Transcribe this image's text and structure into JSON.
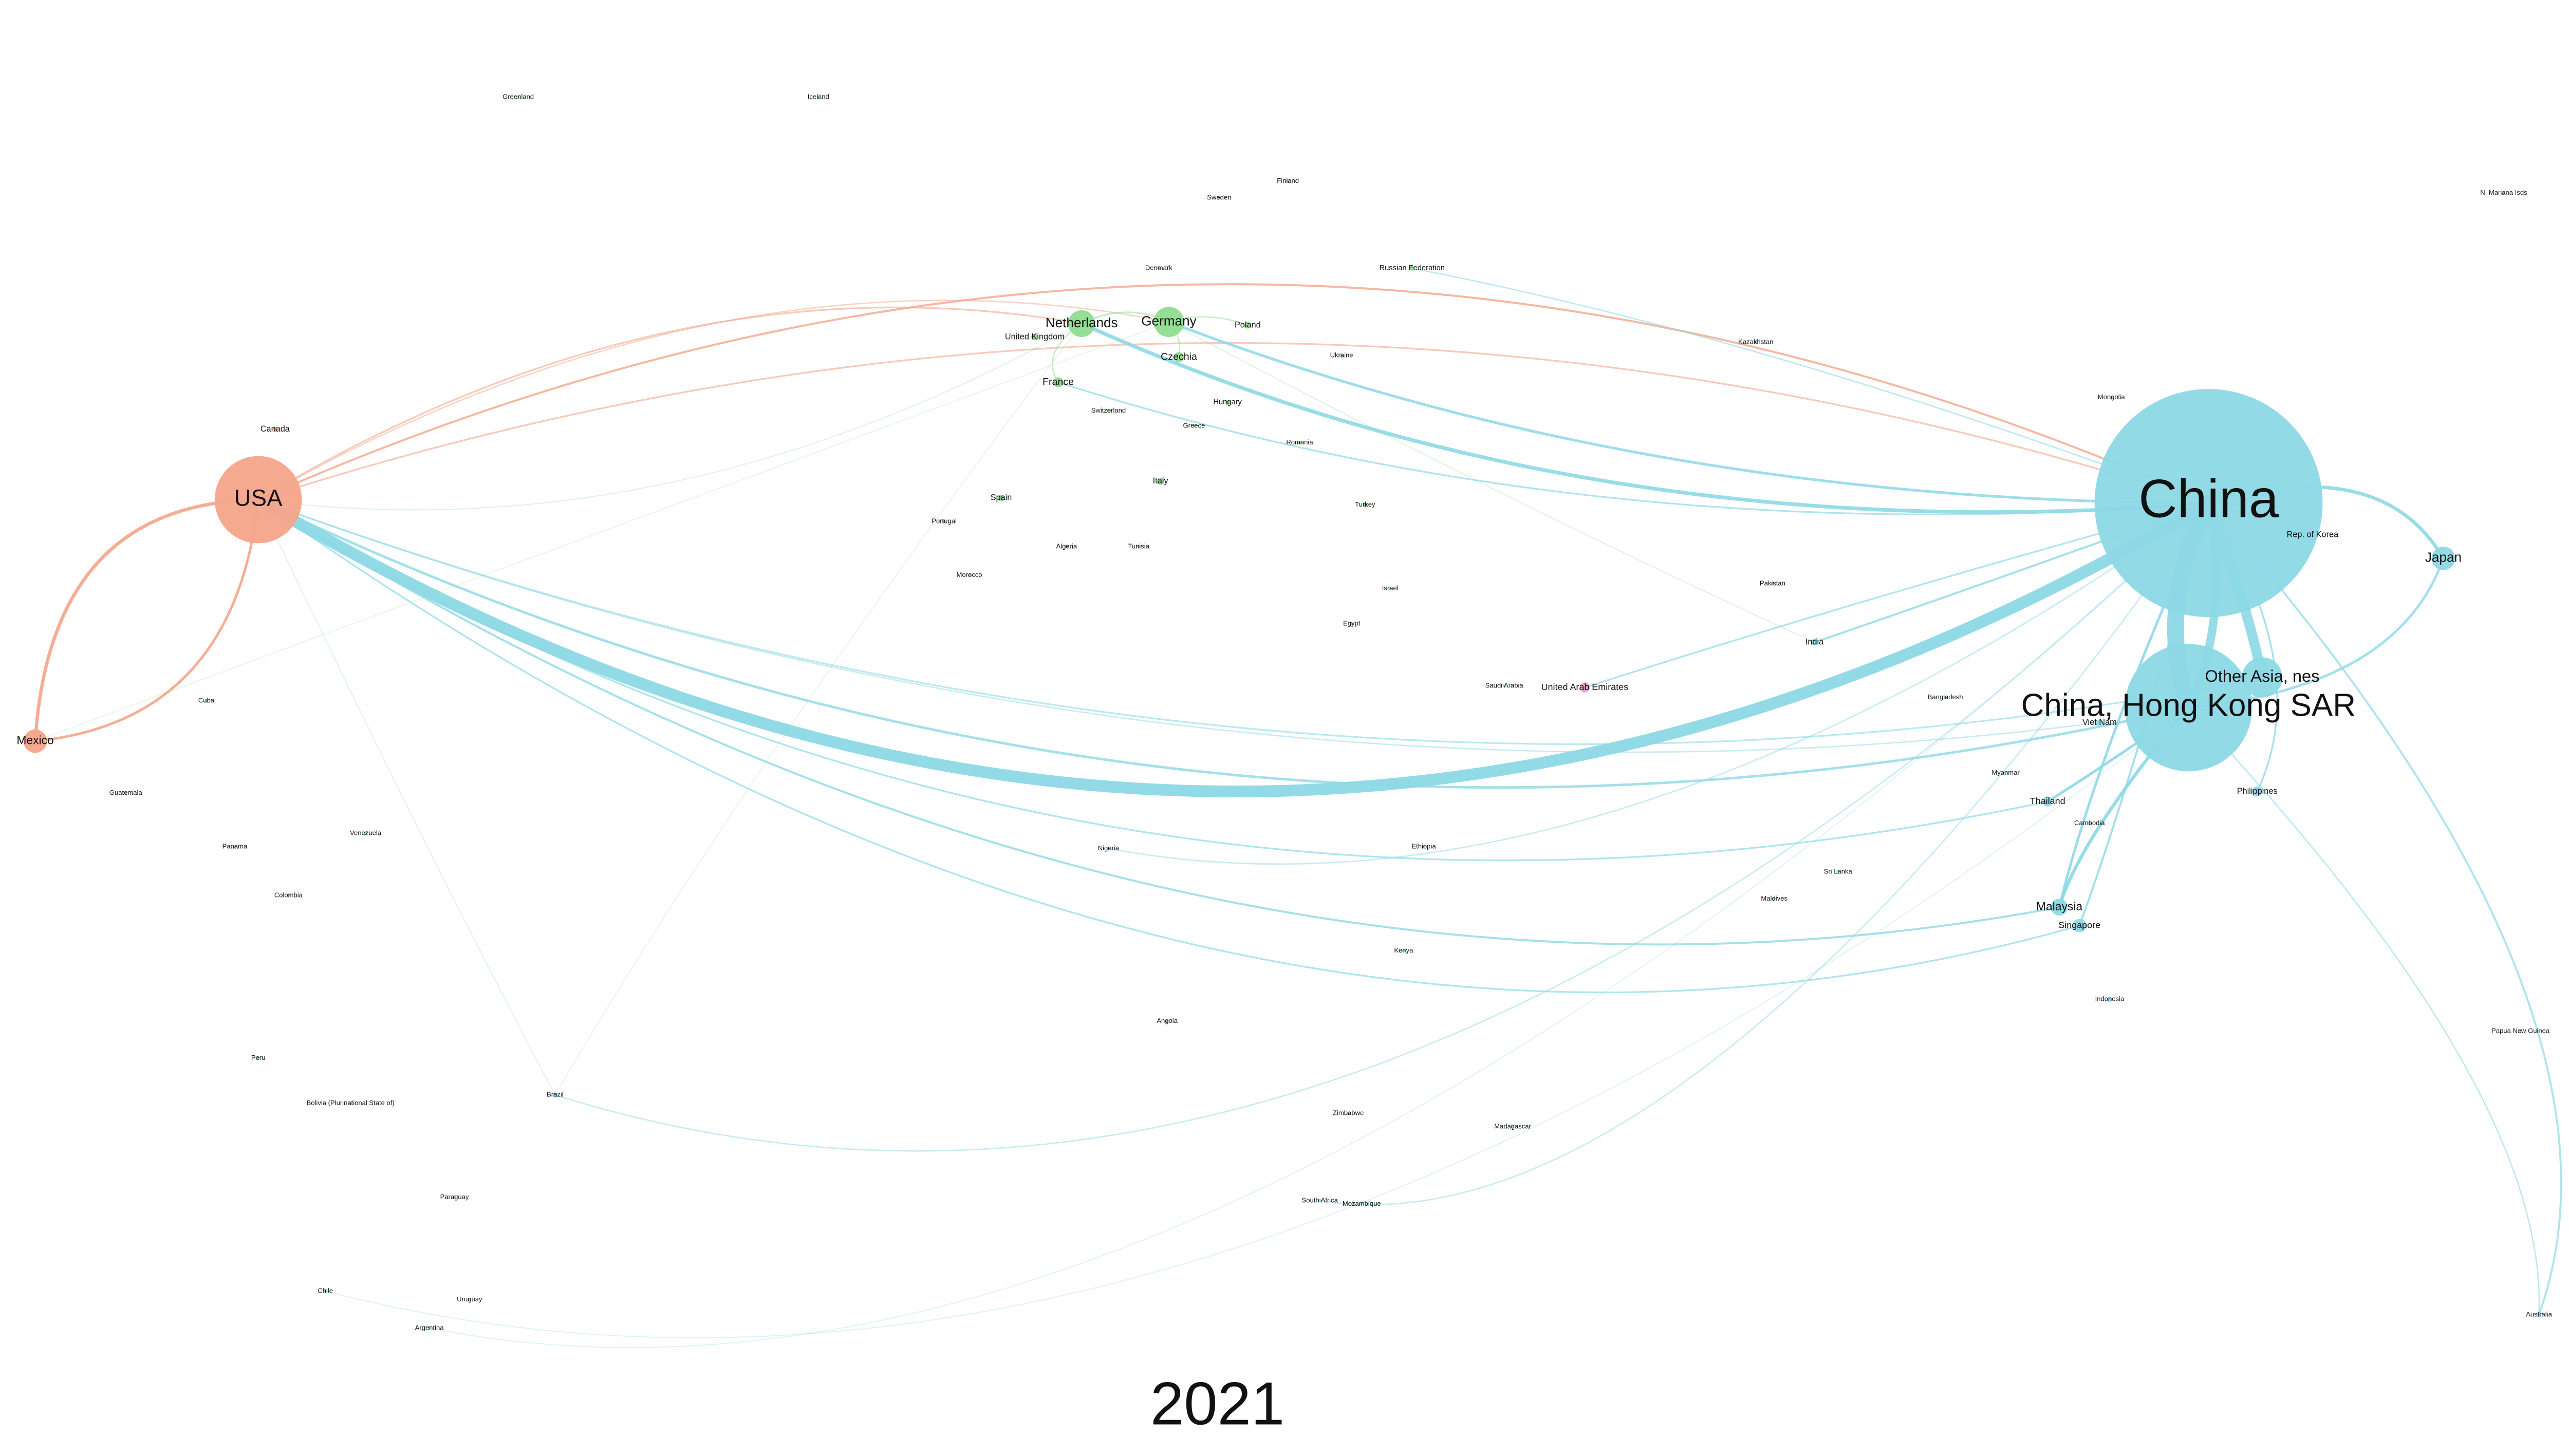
{
  "title": "2021",
  "nodes": [
    {
      "label": "USA"
    },
    {
      "label": "China"
    },
    {
      "label": "China, Hong Kong SAR"
    },
    {
      "label": "Other Asia, nes"
    },
    {
      "label": "Japan"
    },
    {
      "label": "Mexico"
    },
    {
      "label": "Netherlands"
    },
    {
      "label": "Germany"
    },
    {
      "label": "Malaysia"
    },
    {
      "label": "Singapore"
    },
    {
      "label": "Thailand"
    },
    {
      "label": "Philippines"
    },
    {
      "label": "Rep. of Korea"
    },
    {
      "label": "United Arab Emirates"
    },
    {
      "label": "France"
    },
    {
      "label": "Czechia"
    },
    {
      "label": "Poland"
    },
    {
      "label": "Italy"
    },
    {
      "label": "Spain"
    },
    {
      "label": "United Kingdom"
    },
    {
      "label": "Viet Nam"
    },
    {
      "label": "India"
    },
    {
      "label": "Canada"
    },
    {
      "label": "Brazil"
    },
    {
      "label": "Australia"
    },
    {
      "label": "Argentina"
    },
    {
      "label": "Chile"
    },
    {
      "label": "Peru"
    },
    {
      "label": "Russian Federation"
    },
    {
      "label": "Turkey"
    },
    {
      "label": "Egypt"
    },
    {
      "label": "South Africa"
    },
    {
      "label": "Indonesia"
    },
    {
      "label": "Finland"
    },
    {
      "label": "Sweden"
    },
    {
      "label": "Denmark"
    },
    {
      "label": "Hungary"
    },
    {
      "label": "Switzerland"
    },
    {
      "label": "Saudi Arabia"
    },
    {
      "label": "Greenland"
    },
    {
      "label": "Iceland"
    },
    {
      "label": "N. Mariana Isds"
    },
    {
      "label": "Mongolia"
    },
    {
      "label": "Kazakhstan"
    },
    {
      "label": "Pakistan"
    },
    {
      "label": "Bangladesh"
    },
    {
      "label": "Myanmar"
    },
    {
      "label": "Cambodia"
    },
    {
      "label": "Sri Lanka"
    },
    {
      "label": "Maldives"
    },
    {
      "label": "Nigeria"
    },
    {
      "label": "Kenya"
    },
    {
      "label": "Ethiopia"
    },
    {
      "label": "Cuba"
    },
    {
      "label": "Guatemala"
    },
    {
      "label": "Panama"
    },
    {
      "label": "Colombia"
    },
    {
      "label": "Venezuela"
    },
    {
      "label": "Paraguay"
    },
    {
      "label": "Uruguay"
    },
    {
      "label": "Bolivia (Plurinational State of)"
    },
    {
      "label": "Madagascar"
    },
    {
      "label": "Mozambique"
    },
    {
      "label": "Zimbabwe"
    },
    {
      "label": "Angola"
    },
    {
      "label": "Morocco"
    },
    {
      "label": "Algeria"
    },
    {
      "label": "Tunisia"
    },
    {
      "label": "Portugal"
    },
    {
      "label": "Ukraine"
    },
    {
      "label": "Greece"
    },
    {
      "label": "Romania"
    },
    {
      "label": "Israel"
    },
    {
      "label": "Papua New Guinea"
    }
  ]
}
